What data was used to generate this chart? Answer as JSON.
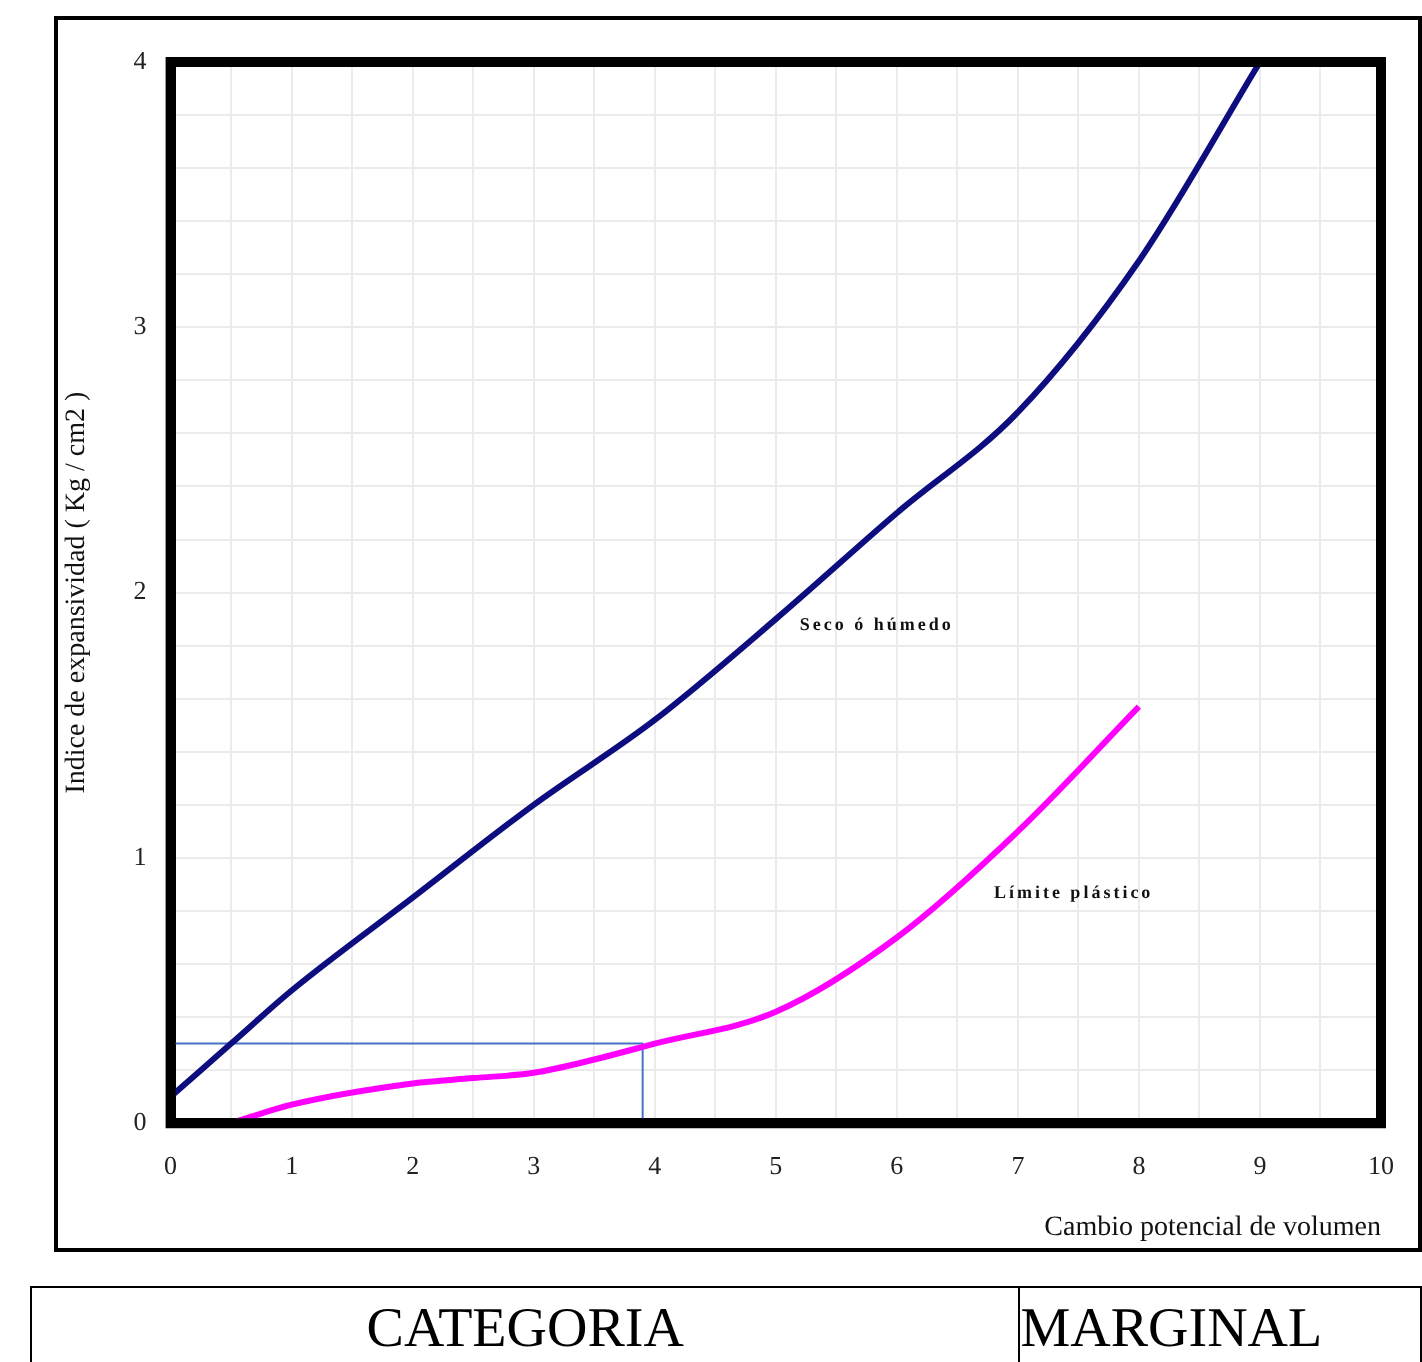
{
  "chart_data": {
    "type": "line",
    "xlabel": "Cambio potencial de volumen",
    "ylabel": "Indice de expansividad ( Kg / cm2 )",
    "series": [
      {
        "name": "Seco ó húmedo",
        "color": "#0d0d80",
        "x": [
          0,
          0.5,
          1,
          2,
          3,
          4,
          5,
          6,
          7,
          8,
          9
        ],
        "values": [
          0.1,
          0.3,
          0.5,
          0.85,
          1.2,
          1.52,
          1.9,
          2.3,
          2.68,
          3.25,
          4.0
        ]
      },
      {
        "name": "Límite plástico",
        "color": "#ff00ff",
        "x": [
          0.5,
          1,
          2,
          2.5,
          3,
          3.5,
          4,
          5,
          6,
          7,
          8
        ],
        "values": [
          0,
          0.07,
          0.15,
          0.17,
          0.19,
          0.24,
          0.3,
          0.42,
          0.7,
          1.1,
          1.57
        ]
      },
      {
        "color": "#4472c4",
        "x": [
          0,
          3.9,
          3.9
        ],
        "values": [
          0.3,
          0.3,
          0
        ]
      }
    ],
    "xlim": [
      0,
      10
    ],
    "ylim": [
      0,
      4
    ],
    "xticks": [
      0,
      {
        "value": 0.5,
        "label": null
      },
      1,
      {
        "value": 1.5,
        "label": null
      },
      2,
      {
        "value": 2.5,
        "label": null
      },
      3,
      {
        "value": 3.5,
        "label": null
      },
      4,
      {
        "value": 4.5,
        "label": null
      },
      5,
      {
        "value": 5.5,
        "label": null
      },
      6,
      {
        "value": 6.5,
        "label": null
      },
      7,
      {
        "value": 7.5,
        "label": null
      },
      8,
      {
        "value": 8.5,
        "label": null
      },
      9,
      {
        "value": 9.5,
        "label": null
      },
      10
    ],
    "yticks": [
      0,
      {
        "value": 0.2,
        "label": null
      },
      {
        "value": 0.4,
        "label": null
      },
      {
        "value": 0.6,
        "label": null
      },
      {
        "value": 0.8,
        "label": null
      },
      1,
      {
        "value": 1.2,
        "label": null
      },
      {
        "value": 1.4,
        "label": null
      },
      {
        "value": 1.6,
        "label": null
      },
      {
        "value": 1.8,
        "label": null
      },
      2,
      {
        "value": 2.2,
        "label": null
      },
      {
        "value": 2.4,
        "label": null
      },
      {
        "value": 2.6,
        "label": null
      },
      {
        "value": 2.8,
        "label": null
      },
      3,
      {
        "value": 3.2,
        "label": null
      },
      {
        "value": 3.4,
        "label": null
      },
      {
        "value": 3.6,
        "label": null
      },
      {
        "value": 3.8,
        "label": null
      },
      4
    ],
    "grid": true,
    "legend": false,
    "marker": "none",
    "line_style": "solid",
    "annotations": [
      "CATEGORIA",
      "MARGINAL"
    ]
  }
}
